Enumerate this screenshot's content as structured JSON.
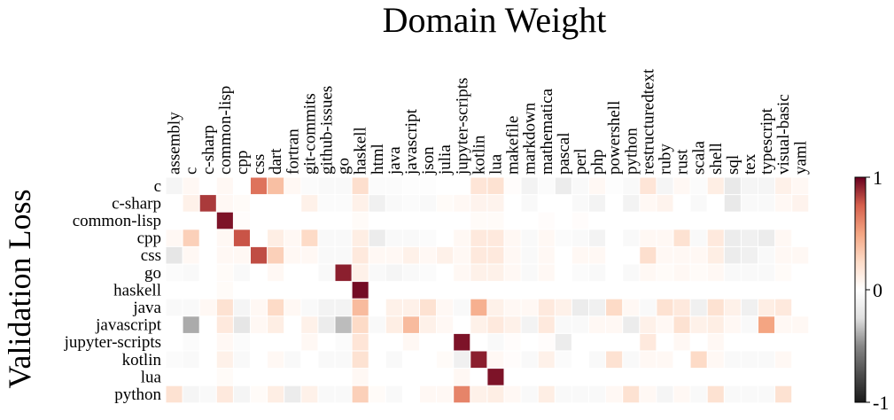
{
  "chart_data": {
    "type": "heatmap",
    "title": "Domain Weight",
    "ylabel": "Validation Loss",
    "xlabel": "",
    "x": [
      "assembly",
      "c",
      "c-sharp",
      "common-lisp",
      "cpp",
      "css",
      "dart",
      "fortran",
      "git-commits",
      "github-issues",
      "go",
      "haskell",
      "html",
      "java",
      "javascript",
      "json",
      "julia",
      "jupyter-scripts",
      "kotlin",
      "lua",
      "makefile",
      "markdown",
      "mathematica",
      "pascal",
      "perl",
      "php",
      "powershell",
      "python",
      "restructuredtext",
      "ruby",
      "rust",
      "scala",
      "shell",
      "sql",
      "tex",
      "typescript",
      "visual-basic",
      "yaml"
    ],
    "y": [
      "c",
      "c-sharp",
      "common-lisp",
      "cpp",
      "css",
      "go",
      "haskell",
      "java",
      "javascript",
      "jupyter-scripts",
      "kotlin",
      "lua",
      "python"
    ],
    "values": [
      [
        -0.08,
        0.05,
        0.0,
        0.05,
        0.0,
        0.68,
        0.38,
        0.05,
        -0.03,
        -0.05,
        -0.05,
        0.22,
        -0.03,
        -0.03,
        -0.02,
        -0.02,
        0.0,
        0.0,
        0.18,
        0.2,
        0.02,
        -0.1,
        -0.03,
        -0.15,
        -0.05,
        0.05,
        -0.02,
        -0.05,
        0.18,
        -0.08,
        0.05,
        -0.03,
        0.12,
        -0.18,
        -0.08,
        -0.08,
        0.1,
        0.05
      ],
      [
        0.0,
        0.1,
        0.85,
        0.05,
        0.03,
        0.0,
        0.0,
        0.0,
        0.1,
        -0.03,
        -0.03,
        0.1,
        -0.12,
        -0.05,
        -0.03,
        -0.05,
        0.03,
        0.05,
        0.08,
        0.08,
        0.0,
        -0.05,
        0.0,
        0.0,
        -0.05,
        -0.1,
        0.0,
        -0.1,
        0.05,
        0.08,
        0.0,
        -0.05,
        0.0,
        -0.18,
        -0.05,
        -0.05,
        0.05,
        0.08
      ],
      [
        0.0,
        0.0,
        0.0,
        0.95,
        0.02,
        0.0,
        0.0,
        0.0,
        0.0,
        0.0,
        0.0,
        0.03,
        0.0,
        0.0,
        0.0,
        0.0,
        0.0,
        0.0,
        0.03,
        0.03,
        0.0,
        0.0,
        0.02,
        0.0,
        0.02,
        0.0,
        0.0,
        0.0,
        0.0,
        0.0,
        0.0,
        0.0,
        0.0,
        0.0,
        0.0,
        0.0,
        0.0,
        0.0
      ],
      [
        0.05,
        0.3,
        0.0,
        0.05,
        0.78,
        0.0,
        0.12,
        0.05,
        0.25,
        -0.05,
        -0.05,
        0.12,
        -0.15,
        -0.05,
        -0.05,
        -0.03,
        0.0,
        0.05,
        0.15,
        0.15,
        0.05,
        -0.05,
        0.05,
        -0.03,
        -0.05,
        -0.1,
        0.0,
        -0.05,
        0.05,
        0.05,
        0.2,
        -0.05,
        0.15,
        -0.15,
        -0.12,
        -0.15,
        0.05,
        0.0
      ],
      [
        -0.2,
        0.05,
        0.0,
        0.05,
        0.05,
        0.8,
        0.3,
        0.05,
        0.05,
        -0.05,
        -0.05,
        0.15,
        0.05,
        0.05,
        0.1,
        0.05,
        0.1,
        0.05,
        0.15,
        0.15,
        0.05,
        -0.05,
        0.05,
        0.0,
        0.05,
        0.05,
        0.0,
        0.0,
        0.22,
        0.05,
        0.05,
        0.05,
        0.12,
        -0.15,
        -0.12,
        -0.05,
        0.05,
        0.05
      ],
      [
        -0.03,
        -0.05,
        0.0,
        0.03,
        -0.05,
        0.0,
        0.05,
        0.0,
        0.0,
        -0.05,
        0.92,
        0.1,
        -0.05,
        -0.08,
        -0.05,
        -0.03,
        0.0,
        0.05,
        0.1,
        0.1,
        0.05,
        -0.05,
        0.05,
        0.0,
        -0.03,
        -0.05,
        0.0,
        -0.05,
        0.05,
        0.03,
        0.05,
        0.03,
        0.05,
        -0.05,
        -0.05,
        -0.05,
        0.03,
        0.0
      ],
      [
        0.0,
        0.0,
        0.0,
        0.03,
        0.0,
        0.0,
        0.0,
        0.0,
        0.0,
        0.0,
        0.0,
        0.97,
        0.0,
        0.0,
        0.0,
        0.0,
        0.0,
        0.0,
        0.0,
        0.0,
        0.0,
        0.0,
        0.0,
        0.0,
        0.0,
        0.0,
        0.0,
        0.0,
        0.0,
        0.0,
        0.0,
        0.0,
        0.0,
        0.0,
        0.0,
        0.0,
        0.0,
        0.0
      ],
      [
        -0.05,
        -0.05,
        0.05,
        0.2,
        -0.08,
        0.05,
        0.25,
        0.05,
        -0.05,
        -0.1,
        -0.1,
        0.4,
        0.0,
        0.1,
        0.1,
        0.2,
        0.05,
        -0.05,
        0.45,
        0.1,
        0.05,
        0.05,
        0.15,
        0.1,
        -0.15,
        -0.12,
        0.25,
        0.05,
        -0.05,
        0.2,
        0.15,
        -0.12,
        0.2,
        0.1,
        -0.12,
        0.12,
        0.15,
        0.0
      ],
      [
        0.0,
        -0.4,
        0.0,
        0.15,
        -0.2,
        0.05,
        0.12,
        0.0,
        0.1,
        -0.15,
        -0.35,
        0.25,
        -0.05,
        0.12,
        0.4,
        0.1,
        0.05,
        0.0,
        0.1,
        0.15,
        0.1,
        -0.1,
        0.15,
        -0.05,
        -0.05,
        0.05,
        0.05,
        -0.15,
        0.1,
        0.05,
        0.2,
        0.1,
        0.12,
        0.05,
        -0.05,
        0.5,
        0.05,
        0.05
      ],
      [
        0.0,
        -0.03,
        0.0,
        0.05,
        -0.03,
        0.0,
        0.0,
        0.0,
        0.05,
        0.0,
        -0.03,
        0.18,
        0.0,
        0.0,
        0.05,
        0.0,
        0.0,
        0.95,
        0.0,
        -0.05,
        0.02,
        0.0,
        0.02,
        -0.15,
        0.0,
        0.0,
        0.0,
        0.0,
        0.15,
        0.0,
        0.05,
        0.0,
        0.05,
        0.0,
        0.0,
        0.0,
        0.0,
        0.0
      ],
      [
        -0.03,
        -0.05,
        0.0,
        0.1,
        -0.05,
        0.0,
        0.05,
        -0.05,
        0.0,
        -0.05,
        -0.05,
        0.2,
        0.0,
        -0.05,
        0.0,
        0.0,
        0.03,
        -0.12,
        0.92,
        0.05,
        0.02,
        -0.05,
        0.1,
        -0.03,
        0.0,
        -0.05,
        0.2,
        -0.05,
        0.05,
        0.05,
        0.0,
        0.25,
        0.05,
        -0.05,
        -0.05,
        -0.05,
        0.05,
        0.0
      ],
      [
        0.0,
        0.0,
        0.0,
        0.03,
        0.0,
        0.0,
        0.0,
        0.0,
        0.0,
        0.0,
        0.0,
        0.05,
        0.0,
        0.0,
        0.0,
        0.0,
        0.0,
        0.05,
        0.0,
        0.95,
        0.0,
        0.0,
        0.0,
        0.0,
        0.0,
        0.0,
        0.0,
        0.0,
        0.0,
        0.0,
        0.0,
        0.0,
        0.0,
        0.0,
        0.0,
        0.0,
        0.0,
        0.0
      ],
      [
        0.2,
        -0.08,
        -0.05,
        0.15,
        -0.08,
        0.03,
        0.12,
        -0.15,
        0.1,
        -0.05,
        -0.05,
        0.3,
        0.03,
        -0.05,
        0.0,
        0.05,
        0.05,
        0.62,
        0.1,
        0.12,
        0.05,
        -0.05,
        0.12,
        -0.05,
        -0.05,
        -0.05,
        0.05,
        0.2,
        0.05,
        -0.08,
        0.05,
        -0.05,
        0.2,
        -0.05,
        -0.05,
        -0.05,
        0.2,
        0.0
      ]
    ],
    "zlim": [
      -1,
      1
    ],
    "colormap": "RdGy_r",
    "colorbar": {
      "ticks": [
        1,
        0,
        -1
      ],
      "tick_labels": [
        "1",
        "0",
        "-1"
      ]
    },
    "colors": {
      "positive": "#67001f",
      "neutral": "#ffffff",
      "negative": "#1a1a1a"
    },
    "grid": false,
    "legend": "colorbar-right"
  }
}
